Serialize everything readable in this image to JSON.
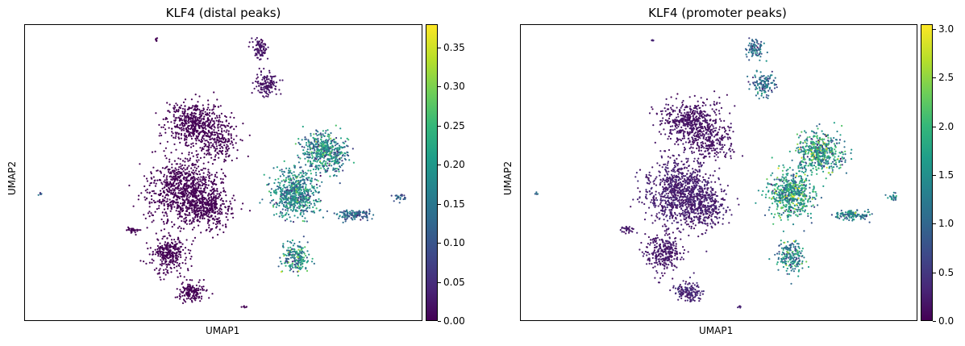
{
  "chart_data": [
    {
      "type": "scatter",
      "title": "KLF4 (distal peaks)",
      "xlabel": "UMAP1",
      "ylabel": "UMAP2",
      "grid": false,
      "colormap": "viridis",
      "colorbar": {
        "min": 0.0,
        "max": 0.38,
        "ticks": [
          "0.00",
          "0.05",
          "0.10",
          "0.15",
          "0.20",
          "0.25",
          "0.30",
          "0.35"
        ],
        "tick_values": [
          0.0,
          0.05,
          0.1,
          0.15,
          0.2,
          0.25,
          0.3,
          0.35
        ]
      },
      "clusters": [
        {
          "name": "left-upper",
          "level": 0.0
        },
        {
          "name": "left-middle",
          "level": 0.0
        },
        {
          "name": "left-lower",
          "level": 0.0
        },
        {
          "name": "left-bottom",
          "level": 0.0
        },
        {
          "name": "top-island",
          "level": 0.02
        },
        {
          "name": "right-main",
          "level": 0.17
        },
        {
          "name": "right-lower",
          "level": 0.18
        },
        {
          "name": "right-tail",
          "level": 0.12
        }
      ]
    },
    {
      "type": "scatter",
      "title": "KLF4 (promoter peaks)",
      "xlabel": "UMAP1",
      "ylabel": "UMAP2",
      "grid": false,
      "colormap": "viridis",
      "colorbar": {
        "min": 0.0,
        "max": 3.05,
        "ticks": [
          "0.0",
          "0.5",
          "1.0",
          "1.5",
          "2.0",
          "2.5",
          "3.0"
        ],
        "tick_values": [
          0.0,
          0.5,
          1.0,
          1.5,
          2.0,
          2.5,
          3.0
        ]
      },
      "clusters": [
        {
          "name": "left-upper",
          "level": 0.15
        },
        {
          "name": "left-middle",
          "level": 0.25
        },
        {
          "name": "left-lower",
          "level": 0.2
        },
        {
          "name": "left-bottom",
          "level": 0.3
        },
        {
          "name": "top-island",
          "level": 1.0
        },
        {
          "name": "right-main",
          "level": 1.6
        },
        {
          "name": "right-lower",
          "level": 1.4
        },
        {
          "name": "right-tail",
          "level": 1.3
        }
      ]
    }
  ]
}
